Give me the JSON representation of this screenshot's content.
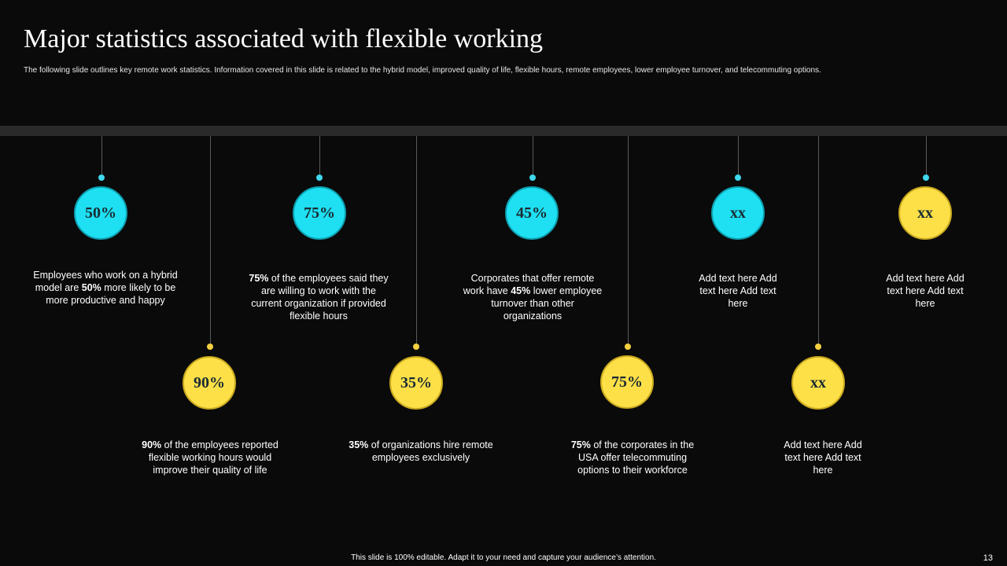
{
  "slide": {
    "title": "Major statistics associated with flexible working",
    "subtitle": "The following slide outlines key remote work statistics. Information covered in this slide is related to the hybrid model, improved quality of life, flexible hours, remote employees, lower employee turnover, and telecommuting options.",
    "footer": "This slide is 100% editable. Adapt it to your need and capture your audience’s attention.",
    "page_number": "13"
  },
  "colors": {
    "cyan": "#1ee0f2",
    "yellow": "#fde047",
    "background": "#0a0a0a"
  },
  "stats_top": [
    {
      "value": "50%",
      "color": "cyan",
      "pre": "Employees who work on a hybrid model are ",
      "bold": "50%",
      "post": " more likely to be more productive  and happy"
    },
    {
      "value": "75%",
      "color": "cyan",
      "pre": "",
      "bold": "75%",
      "post": " of the employees said they are willing to work with the current organization if provided  flexible hours"
    },
    {
      "value": "45%",
      "color": "cyan",
      "pre": "Corporates that offer remote work have ",
      "bold": "45%",
      "post": " lower employee turnover  than other organizations"
    },
    {
      "value": "xx",
      "color": "cyan",
      "pre": "Add text here Add text here Add text here",
      "bold": "",
      "post": ""
    },
    {
      "value": "xx",
      "color": "yellow",
      "pre": "Add text here Add text here Add text here",
      "bold": "",
      "post": ""
    }
  ],
  "stats_bottom": [
    {
      "value": "90%",
      "color": "yellow",
      "pre": "",
      "bold": "90%",
      "post": " of the employees reported flexible working hours would improve  their quality of life"
    },
    {
      "value": "35%",
      "color": "yellow",
      "pre": "",
      "bold": "35%",
      "post": " of organizations hire remote employees exclusively"
    },
    {
      "value": "75%",
      "color": "yellow",
      "pre": "",
      "bold": "75%",
      "post": " of the corporates in the USA offer telecommuting options to their workforce"
    },
    {
      "value": "xx",
      "color": "yellow",
      "pre": "Add text here Add text here Add text here",
      "bold": "",
      "post": ""
    }
  ]
}
